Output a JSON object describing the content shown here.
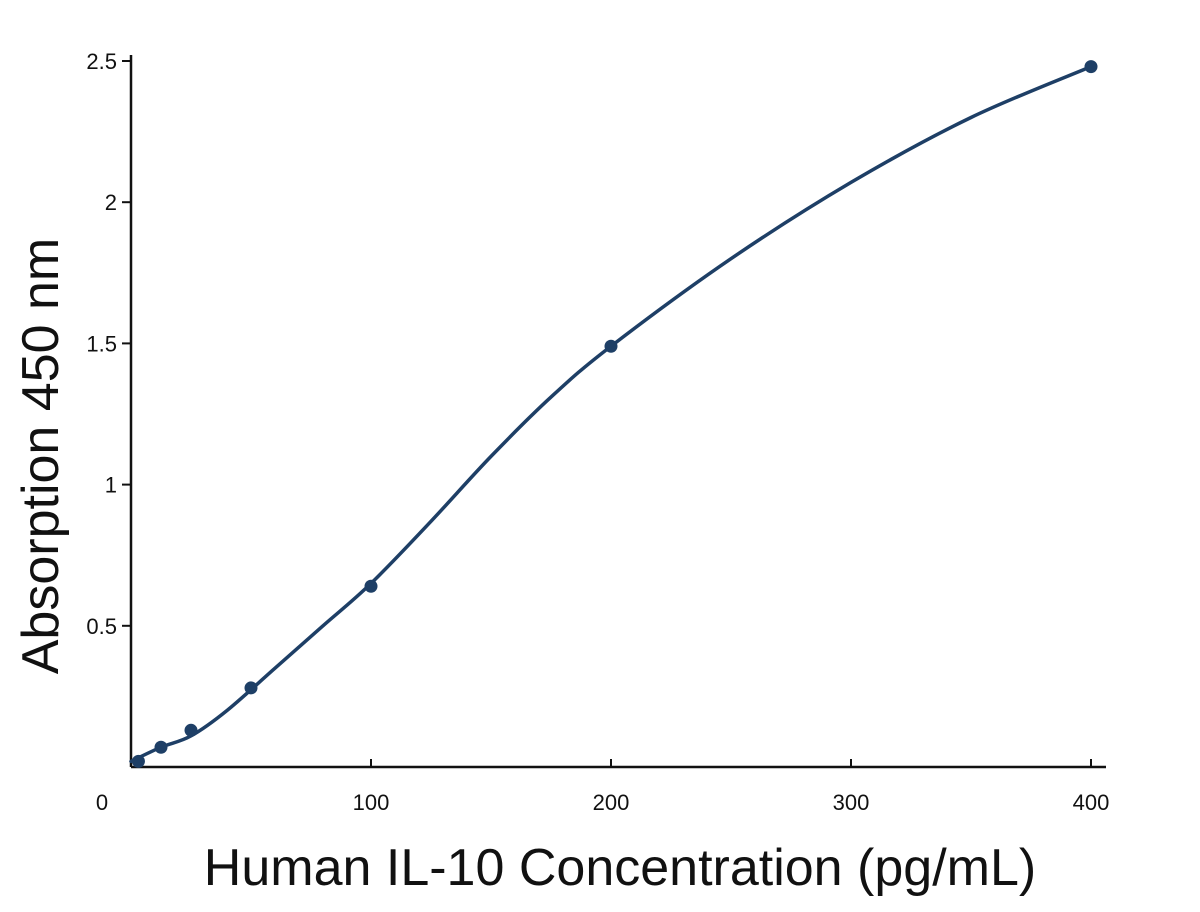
{
  "chart_data": {
    "type": "scatter",
    "title": "",
    "xlabel": "Human IL-10 Concentration (pg/mL)",
    "ylabel": "Absorption 450 nm",
    "xlim": [
      0,
      400
    ],
    "ylim": [
      0,
      2.5
    ],
    "x_ticks": [
      0,
      100,
      200,
      300,
      400
    ],
    "x_tick_labels": [
      "0",
      "100",
      "200",
      "300",
      "400"
    ],
    "y_ticks": [
      0.5,
      1,
      1.5,
      2,
      2.5
    ],
    "y_tick_labels": [
      "0.5",
      "1",
      "1.5",
      "2",
      "2.5"
    ],
    "grid": false,
    "legend": "none",
    "series": [
      {
        "color": "#1e3f66",
        "x": [
          3.1,
          12.5,
          25,
          50,
          100,
          200,
          400
        ],
        "y": [
          0.02,
          0.07,
          0.13,
          0.28,
          0.64,
          1.49,
          2.48
        ]
      }
    ],
    "fit_curve": {
      "color": "#1e3f66",
      "x": [
        0,
        12.5,
        25,
        40,
        60,
        80,
        100,
        125,
        150,
        175,
        200,
        250,
        300,
        350,
        400
      ],
      "y": [
        0.02,
        0.07,
        0.11,
        0.2,
        0.35,
        0.5,
        0.65,
        0.87,
        1.1,
        1.31,
        1.49,
        1.8,
        2.07,
        2.3,
        2.48
      ]
    }
  }
}
